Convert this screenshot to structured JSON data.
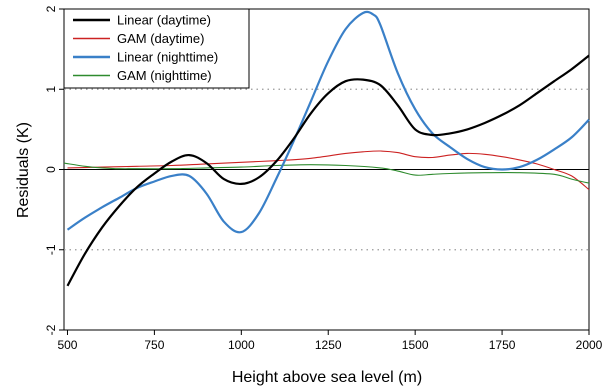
{
  "chart_data": {
    "type": "line",
    "title": "",
    "xlabel": "Height above sea level (m)",
    "ylabel": "Residuals (K)",
    "xlim": [
      490,
      2000
    ],
    "ylim": [
      -2,
      2
    ],
    "xticks": [
      500,
      750,
      1000,
      1250,
      1500,
      1750,
      2000
    ],
    "yticks": [
      -2,
      -1,
      0,
      1,
      2
    ],
    "grid": "dotted horizontal lines at y = -1 and y = 1",
    "reference_line": 0,
    "legend_position": "top-left",
    "series": [
      {
        "name": "Linear (daytime)",
        "color": "#000000",
        "width": "thick",
        "x": [
          500,
          550,
          600,
          650,
          700,
          750,
          800,
          850,
          900,
          950,
          1000,
          1050,
          1100,
          1150,
          1200,
          1250,
          1300,
          1350,
          1400,
          1450,
          1500,
          1550,
          1600,
          1650,
          1700,
          1750,
          1800,
          1850,
          1900,
          1950,
          2000
        ],
        "y": [
          -1.45,
          -1.05,
          -0.72,
          -0.45,
          -0.22,
          -0.05,
          0.1,
          0.18,
          0.08,
          -0.12,
          -0.18,
          -0.1,
          0.1,
          0.38,
          0.7,
          0.95,
          1.1,
          1.12,
          1.05,
          0.8,
          0.5,
          0.43,
          0.45,
          0.5,
          0.58,
          0.68,
          0.8,
          0.95,
          1.1,
          1.25,
          1.42
        ]
      },
      {
        "name": "GAM (daytime)",
        "color": "#cc2222",
        "width": "thin",
        "x": [
          500,
          600,
          700,
          800,
          900,
          1000,
          1100,
          1200,
          1300,
          1350,
          1400,
          1450,
          1500,
          1550,
          1600,
          1650,
          1700,
          1750,
          1800,
          1850,
          1900,
          1950,
          2000
        ],
        "y": [
          0.02,
          0.03,
          0.04,
          0.05,
          0.07,
          0.09,
          0.11,
          0.14,
          0.2,
          0.22,
          0.23,
          0.21,
          0.16,
          0.15,
          0.18,
          0.2,
          0.19,
          0.16,
          0.12,
          0.07,
          0.0,
          -0.08,
          -0.25
        ]
      },
      {
        "name": "Linear (nighttime)",
        "color": "#3a80c8",
        "width": "thick",
        "x": [
          500,
          550,
          600,
          650,
          700,
          750,
          800,
          850,
          900,
          950,
          1000,
          1050,
          1100,
          1150,
          1200,
          1250,
          1300,
          1350,
          1380,
          1400,
          1450,
          1500,
          1550,
          1600,
          1650,
          1700,
          1750,
          1800,
          1850,
          1900,
          1950,
          2000
        ],
        "y": [
          -0.75,
          -0.6,
          -0.47,
          -0.35,
          -0.23,
          -0.15,
          -0.08,
          -0.08,
          -0.3,
          -0.65,
          -0.78,
          -0.55,
          -0.12,
          0.35,
          0.85,
          1.35,
          1.75,
          1.95,
          1.93,
          1.8,
          1.2,
          0.75,
          0.45,
          0.28,
          0.13,
          0.03,
          0.0,
          0.03,
          0.12,
          0.25,
          0.4,
          0.62
        ]
      },
      {
        "name": "GAM (nighttime)",
        "color": "#2e8b2e",
        "width": "thin",
        "x": [
          490,
          550,
          600,
          650,
          700,
          800,
          900,
          1000,
          1100,
          1200,
          1300,
          1400,
          1450,
          1500,
          1550,
          1600,
          1700,
          1800,
          1900,
          1950,
          2000
        ],
        "y": [
          0.08,
          0.04,
          0.02,
          0.01,
          0.01,
          0.01,
          0.02,
          0.03,
          0.05,
          0.06,
          0.05,
          0.02,
          -0.02,
          -0.07,
          -0.06,
          -0.05,
          -0.04,
          -0.04,
          -0.06,
          -0.12,
          -0.17
        ]
      }
    ]
  }
}
